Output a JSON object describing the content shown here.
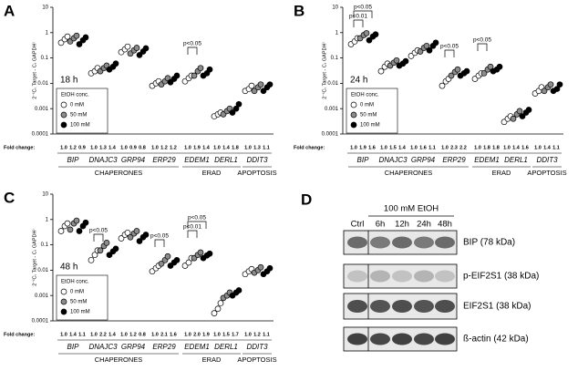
{
  "chart_data": [
    {
      "type": "scatter",
      "letter": "A",
      "time_label": "18 h",
      "ylabel": "2⁻⁽Cₜ Target - Cₜ GAPDH⁾",
      "log_scale": true,
      "ylim": [
        0.0001,
        10
      ],
      "yticks": [
        10,
        1,
        0.1,
        0.01,
        0.001,
        0.0001
      ],
      "categories": [
        "BIP",
        "DNAJC3",
        "GRP94",
        "ERP29",
        "EDEM1",
        "DERL1",
        "DDIT3"
      ],
      "legend_title": "EtOH conc.",
      "series": [
        {
          "name": "0 mM",
          "color": "#ffffff",
          "values": [
            [
              0.4,
              0.55,
              0.7
            ],
            [
              0.025,
              0.03,
              0.04
            ],
            [
              0.17,
              0.22,
              0.28
            ],
            [
              0.008,
              0.01,
              0.012
            ],
            [
              0.012,
              0.016,
              0.02
            ],
            [
              0.0005,
              0.0006,
              0.0007
            ],
            [
              0.005,
              0.006,
              0.008
            ]
          ]
        },
        {
          "name": "50 mM",
          "color": "#8c8c8c",
          "values": [
            [
              0.45,
              0.6,
              0.75
            ],
            [
              0.03,
              0.04,
              0.05
            ],
            [
              0.15,
              0.2,
              0.25
            ],
            [
              0.009,
              0.012,
              0.016
            ],
            [
              0.02,
              0.03,
              0.04
            ],
            [
              0.0006,
              0.0008,
              0.001
            ],
            [
              0.005,
              0.007,
              0.009
            ]
          ]
        },
        {
          "name": "100 mM",
          "color": "#000000",
          "values": [
            [
              0.35,
              0.5,
              0.65
            ],
            [
              0.035,
              0.045,
              0.06
            ],
            [
              0.13,
              0.18,
              0.24
            ],
            [
              0.011,
              0.015,
              0.02
            ],
            [
              0.02,
              0.025,
              0.035
            ],
            [
              0.0007,
              0.001,
              0.0015
            ],
            [
              0.005,
              0.007,
              0.009
            ]
          ]
        }
      ],
      "fold_change_label": "Fold change:",
      "fold_change": [
        "1.0",
        "1.2",
        "0.9",
        "1.0",
        "1.3",
        "1.4",
        "1.0",
        "0.9",
        "0.8",
        "1.0",
        "1.2",
        "1.2",
        "1.0",
        "1.9",
        "1.4",
        "1.0",
        "1.4",
        "1.8",
        "1.0",
        "1.3",
        "1.1"
      ],
      "groups": [
        "CHAPERONES",
        "ERAD",
        "APOPTOSIS"
      ],
      "annotations": [
        "p<0.05"
      ]
    },
    {
      "type": "scatter",
      "letter": "B",
      "time_label": "24 h",
      "ylabel": "2⁻⁽Cₜ Target - Cₜ GAPDH⁾",
      "log_scale": true,
      "ylim": [
        0.0001,
        10
      ],
      "yticks": [
        10,
        1,
        0.1,
        0.01,
        0.001,
        0.0001
      ],
      "categories": [
        "BIP",
        "DNAJC3",
        "GRP94",
        "ERP29",
        "EDEM1",
        "DERL1",
        "DDIT3"
      ],
      "legend_title": "EtOH conc.",
      "series": [
        {
          "name": "0 mM",
          "color": "#ffffff",
          "values": [
            [
              0.35,
              0.45,
              0.6
            ],
            [
              0.03,
              0.045,
              0.06
            ],
            [
              0.12,
              0.16,
              0.2
            ],
            [
              0.008,
              0.012,
              0.015
            ],
            [
              0.015,
              0.02,
              0.025
            ],
            [
              0.0003,
              0.0004,
              0.0005
            ],
            [
              0.004,
              0.005,
              0.007
            ]
          ]
        },
        {
          "name": "50 mM",
          "color": "#8c8c8c",
          "values": [
            [
              0.6,
              0.8,
              0.95
            ],
            [
              0.05,
              0.065,
              0.08
            ],
            [
              0.18,
              0.25,
              0.3
            ],
            [
              0.02,
              0.028,
              0.035
            ],
            [
              0.025,
              0.035,
              0.045
            ],
            [
              0.0004,
              0.0006,
              0.0008
            ],
            [
              0.005,
              0.007,
              0.009
            ]
          ]
        },
        {
          "name": "100 mM",
          "color": "#000000",
          "values": [
            [
              0.5,
              0.7,
              0.85
            ],
            [
              0.05,
              0.06,
              0.075
            ],
            [
              0.2,
              0.3,
              0.4
            ],
            [
              0.02,
              0.025,
              0.03
            ],
            [
              0.03,
              0.035,
              0.045
            ],
            [
              0.0005,
              0.0007,
              0.0009
            ],
            [
              0.005,
              0.006,
              0.009
            ]
          ]
        }
      ],
      "fold_change_label": "Fold change:",
      "fold_change": [
        "1.0",
        "1.9",
        "1.6",
        "1.0",
        "1.5",
        "1.4",
        "1.0",
        "1.6",
        "1.1",
        "1.0",
        "2.3",
        "2.2",
        "1.0",
        "1.8",
        "1.8",
        "1.0",
        "1.4",
        "1.6",
        "1.0",
        "1.4",
        "1.1"
      ],
      "groups": [
        "CHAPERONES",
        "ERAD",
        "APOPTOSIS"
      ],
      "annotations": [
        "p<0.05",
        "p<0.01",
        "p<0.05",
        "p<0.05"
      ]
    },
    {
      "type": "scatter",
      "letter": "C",
      "time_label": "48 h",
      "ylabel": "2⁻⁽Cₜ Target - Cₜ GAPDH⁾",
      "log_scale": true,
      "ylim": [
        0.0001,
        10
      ],
      "yticks": [
        10,
        1,
        0.1,
        0.01,
        0.001,
        0.0001
      ],
      "categories": [
        "BIP",
        "DNAJC3",
        "GRP94",
        "ERP29",
        "EDEM1",
        "DERL1",
        "DDIT3"
      ],
      "legend_title": "EtOH conc.",
      "series": [
        {
          "name": "0 mM",
          "color": "#ffffff",
          "values": [
            [
              0.35,
              0.55,
              0.7
            ],
            [
              0.025,
              0.04,
              0.06
            ],
            [
              0.18,
              0.25,
              0.3
            ],
            [
              0.009,
              0.012,
              0.015
            ],
            [
              0.015,
              0.02,
              0.03
            ],
            [
              0.0002,
              0.0003,
              0.0005
            ],
            [
              0.007,
              0.009,
              0.011
            ]
          ]
        },
        {
          "name": "50 mM",
          "color": "#8c8c8c",
          "values": [
            [
              0.4,
              0.7,
              0.9
            ],
            [
              0.06,
              0.09,
              0.12
            ],
            [
              0.2,
              0.28,
              0.35
            ],
            [
              0.018,
              0.025,
              0.035
            ],
            [
              0.03,
              0.04,
              0.05
            ],
            [
              0.0008,
              0.001,
              0.0013
            ],
            [
              0.008,
              0.01,
              0.013
            ]
          ]
        },
        {
          "name": "100 mM",
          "color": "#000000",
          "values": [
            [
              0.35,
              0.55,
              0.75
            ],
            [
              0.04,
              0.055,
              0.07
            ],
            [
              0.14,
              0.2,
              0.25
            ],
            [
              0.015,
              0.02,
              0.025
            ],
            [
              0.03,
              0.038,
              0.045
            ],
            [
              0.001,
              0.0013,
              0.0016
            ],
            [
              0.007,
              0.009,
              0.012
            ]
          ]
        }
      ],
      "fold_change_label": "Fold change:",
      "fold_change": [
        "1.0",
        "1.4",
        "1.1",
        "1.0",
        "2.2",
        "1.4",
        "1.0",
        "1.2",
        "0.8",
        "1.0",
        "2.1",
        "1.6",
        "1.0",
        "2.0",
        "1.9",
        "1.0",
        "1.5",
        "1.7",
        "1.0",
        "1.2",
        "1.1"
      ],
      "groups": [
        "CHAPERONES",
        "ERAD",
        "APOPTOSIS"
      ],
      "annotations": [
        "p<0.05",
        "p<0.05",
        "p<0.05",
        "p<0.01"
      ]
    }
  ],
  "blot": {
    "letter": "D",
    "header": "100 mM EtOH",
    "lanes": [
      "Ctrl",
      "6h",
      "12h",
      "24h",
      "48h"
    ],
    "rows": [
      "BIP (78 kDa)",
      "p-EIF2S1 (38 kDa)",
      "EIF2S1 (38 kDa)",
      "ß-actin (42 kDa)"
    ]
  }
}
